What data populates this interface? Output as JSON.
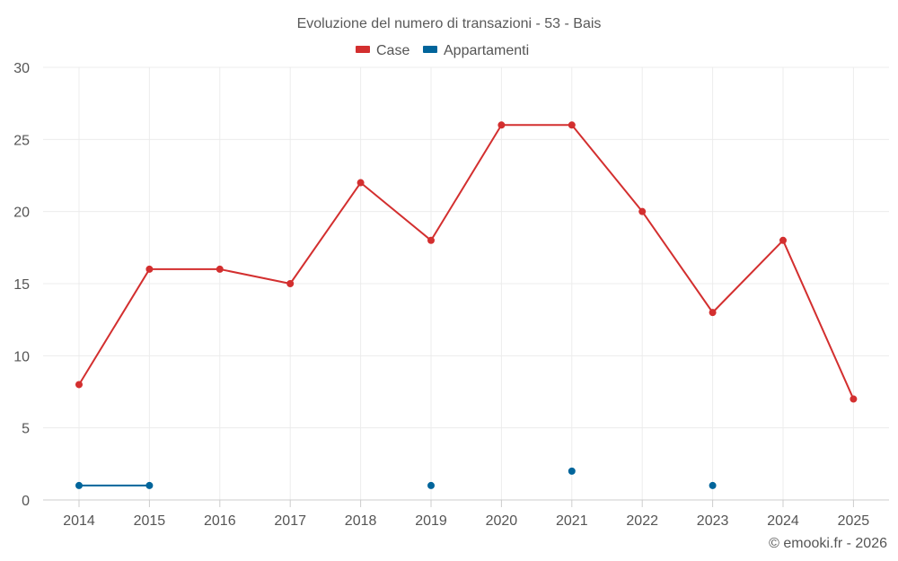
{
  "chart_data": {
    "type": "line",
    "title": "Evoluzione del numero di transazioni - 53 - Bais",
    "xlabel": "",
    "ylabel": "",
    "categories": [
      "2014",
      "2015",
      "2016",
      "2017",
      "2018",
      "2019",
      "2020",
      "2021",
      "2022",
      "2023",
      "2024",
      "2025"
    ],
    "ylim": [
      0,
      30
    ],
    "yticks": [
      "0",
      "5",
      "10",
      "15",
      "20",
      "25",
      "30"
    ],
    "grid": true,
    "legend_position": "top-center",
    "series": [
      {
        "name": "Case",
        "color": "#d32f2f",
        "values": [
          8,
          16,
          16,
          15,
          22,
          18,
          26,
          26,
          20,
          13,
          18,
          7
        ]
      },
      {
        "name": "Appartamenti",
        "color": "#01659b",
        "values": [
          1,
          1,
          null,
          null,
          null,
          1,
          null,
          2,
          null,
          1,
          null,
          null
        ]
      }
    ],
    "credit": "© emooki.fr - 2026"
  }
}
